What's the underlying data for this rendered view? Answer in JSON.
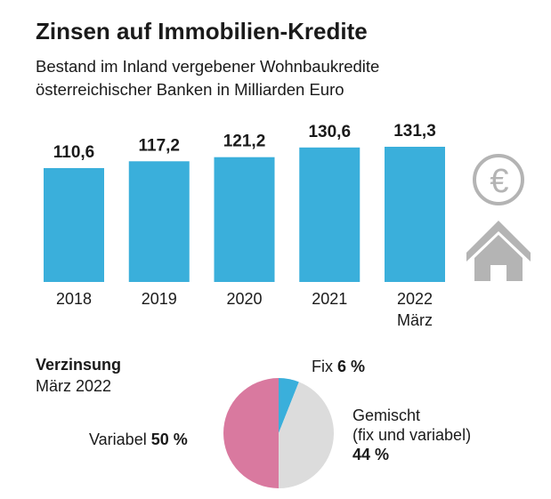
{
  "chart_data": [
    {
      "type": "bar",
      "title": "Zinsen auf Immobilien-Kredite",
      "subtitle": [
        "Bestand im Inland vergebener Wohnbaukredite",
        "österreichischer Banken in Milliarden Euro"
      ],
      "categories": [
        "2018",
        "2019",
        "2020",
        "2021",
        "2022 März"
      ],
      "category_lines": [
        [
          "2018"
        ],
        [
          "2019"
        ],
        [
          "2020"
        ],
        [
          "2021"
        ],
        [
          "2022",
          "März"
        ]
      ],
      "values": [
        110.6,
        117.2,
        121.2,
        130.6,
        131.3
      ],
      "value_labels": [
        "110,6",
        "117,2",
        "121,2",
        "130,6",
        "131,3"
      ],
      "color": "#3aafdb",
      "ylim": [
        0,
        140
      ],
      "grid": false
    },
    {
      "type": "pie",
      "title": "Verzinsung",
      "subtitle": "März 2022",
      "slices": [
        {
          "name": "Fix",
          "value": 6,
          "label": "6 %",
          "color": "#3aafdb"
        },
        {
          "name": "Gemischt (fix und variabel)",
          "name_lines": [
            "Gemischt",
            "(fix und variabel)"
          ],
          "value": 44,
          "label": "44 %",
          "color": "#dcdcdc"
        },
        {
          "name": "Variabel",
          "value": 50,
          "label": "50 %",
          "color": "#d9799f"
        }
      ]
    }
  ],
  "icons": {
    "euro": "euro-coin-icon",
    "house": "house-icon",
    "color": "#b4b4b4"
  }
}
